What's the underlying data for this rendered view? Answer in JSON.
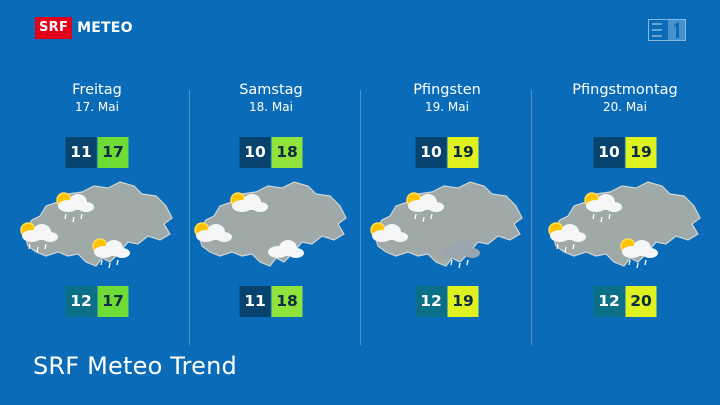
{
  "brand": {
    "srf": "SRF",
    "meteo": "METEO"
  },
  "colors": {
    "background": "#0a6cb8",
    "min_dark": "#07436e",
    "min_teal": "#0b6f87",
    "max_green": "#6fdc36",
    "max_lime": "#dff21f",
    "brand_red": "#e2001a"
  },
  "days": [
    {
      "name": "Freitag",
      "date": "17. Mai",
      "forecast": {
        "min": "11",
        "max": "17"
      },
      "trend": {
        "min": "12",
        "max": "17"
      }
    },
    {
      "name": "Samstag",
      "date": "18. Mai",
      "forecast": {
        "min": "10",
        "max": "18"
      },
      "trend": {
        "min": "11",
        "max": "18"
      }
    },
    {
      "name": "Pfingsten",
      "date": "19. Mai",
      "forecast": {
        "min": "10",
        "max": "19"
      },
      "trend": {
        "min": "12",
        "max": "19"
      }
    },
    {
      "name": "Pfingstmontag",
      "date": "20. Mai",
      "forecast": {
        "min": "10",
        "max": "19"
      },
      "trend": {
        "min": "12",
        "max": "20"
      }
    }
  ],
  "map_icons": [
    [
      "sun-cloud-rain-icon",
      "sun-cloud-rain-icon",
      "sun-cloud-rain-icon"
    ],
    [
      "sun-cloud-icon",
      "sun-cloud-icon",
      "cloud-icon"
    ],
    [
      "sun-cloud-rain-icon",
      "sun-cloud-icon",
      "cloud-rain-icon"
    ],
    [
      "sun-cloud-rain-icon",
      "sun-cloud-rain-icon",
      "sun-cloud-rain-icon"
    ]
  ],
  "footer": {
    "title": "SRF Meteo Trend"
  }
}
